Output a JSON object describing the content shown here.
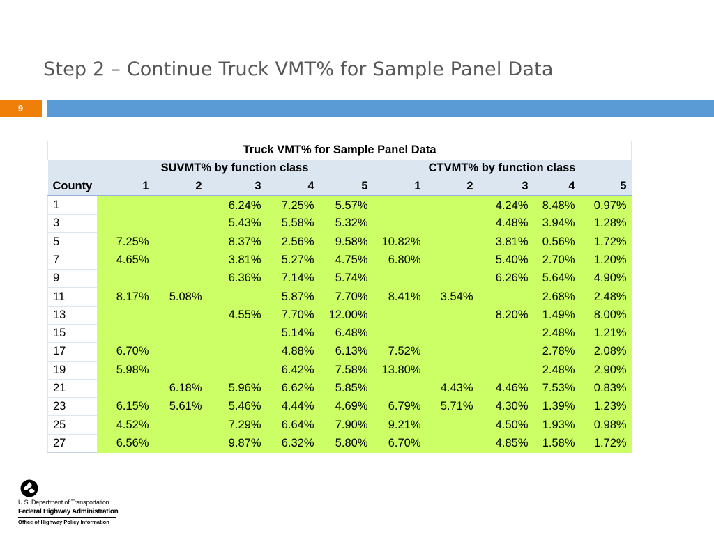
{
  "slide": {
    "title": "Step 2 – Continue Truck VMT% for Sample Panel Data",
    "page_number": "9"
  },
  "colors": {
    "accent_orange": "#f07f09",
    "title_bar_blue": "#5b9bd5",
    "header_fill": "#dce6f1",
    "value_fill": "#ccff66"
  },
  "table": {
    "caption": "Truck VMT% for Sample Panel Data",
    "group_su": "SUVMT% by function class",
    "group_ct": "CTVMT% by function class",
    "county_header": "County",
    "columns": [
      "1",
      "2",
      "3",
      "4",
      "5",
      "1",
      "2",
      "3",
      "4",
      "5"
    ],
    "rows": [
      {
        "county": "1",
        "values": [
          "",
          "",
          "6.24%",
          "7.25%",
          "5.57%",
          "",
          "",
          "4.24%",
          "8.48%",
          "0.97%"
        ]
      },
      {
        "county": "3",
        "values": [
          "",
          "",
          "5.43%",
          "5.58%",
          "5.32%",
          "",
          "",
          "4.48%",
          "3.94%",
          "1.28%"
        ]
      },
      {
        "county": "5",
        "values": [
          "7.25%",
          "",
          "8.37%",
          "2.56%",
          "9.58%",
          "10.82%",
          "",
          "3.81%",
          "0.56%",
          "1.72%"
        ]
      },
      {
        "county": "7",
        "values": [
          "4.65%",
          "",
          "3.81%",
          "5.27%",
          "4.75%",
          "6.80%",
          "",
          "5.40%",
          "2.70%",
          "1.20%"
        ]
      },
      {
        "county": "9",
        "values": [
          "",
          "",
          "6.36%",
          "7.14%",
          "5.74%",
          "",
          "",
          "6.26%",
          "5.64%",
          "4.90%"
        ]
      },
      {
        "county": "11",
        "values": [
          "8.17%",
          "5.08%",
          "",
          "5.87%",
          "7.70%",
          "8.41%",
          "3.54%",
          "",
          "2.68%",
          "2.48%"
        ]
      },
      {
        "county": "13",
        "values": [
          "",
          "",
          "4.55%",
          "7.70%",
          "12.00%",
          "",
          "",
          "8.20%",
          "1.49%",
          "8.00%"
        ]
      },
      {
        "county": "15",
        "values": [
          "",
          "",
          "",
          "5.14%",
          "6.48%",
          "",
          "",
          "",
          "2.48%",
          "1.21%"
        ]
      },
      {
        "county": "17",
        "values": [
          "6.70%",
          "",
          "",
          "4.88%",
          "6.13%",
          "7.52%",
          "",
          "",
          "2.78%",
          "2.08%"
        ]
      },
      {
        "county": "19",
        "values": [
          "5.98%",
          "",
          "",
          "6.42%",
          "7.58%",
          "13.80%",
          "",
          "",
          "2.48%",
          "2.90%"
        ]
      },
      {
        "county": "21",
        "values": [
          "",
          "6.18%",
          "5.96%",
          "6.62%",
          "5.85%",
          "",
          "4.43%",
          "4.46%",
          "7.53%",
          "0.83%"
        ]
      },
      {
        "county": "23",
        "values": [
          "6.15%",
          "5.61%",
          "5.46%",
          "4.44%",
          "4.69%",
          "6.79%",
          "5.71%",
          "4.30%",
          "1.39%",
          "1.23%"
        ]
      },
      {
        "county": "25",
        "values": [
          "4.52%",
          "",
          "7.29%",
          "6.64%",
          "7.90%",
          "9.21%",
          "",
          "4.50%",
          "1.93%",
          "0.98%"
        ]
      },
      {
        "county": "27",
        "values": [
          "6.56%",
          "",
          "9.87%",
          "6.32%",
          "5.80%",
          "6.70%",
          "",
          "4.85%",
          "1.58%",
          "1.72%"
        ]
      }
    ]
  },
  "logo": {
    "line1": "U.S. Department of Transportation",
    "line2": "Federal Highway Administration",
    "line3": "Office of Highway Policy Information"
  }
}
